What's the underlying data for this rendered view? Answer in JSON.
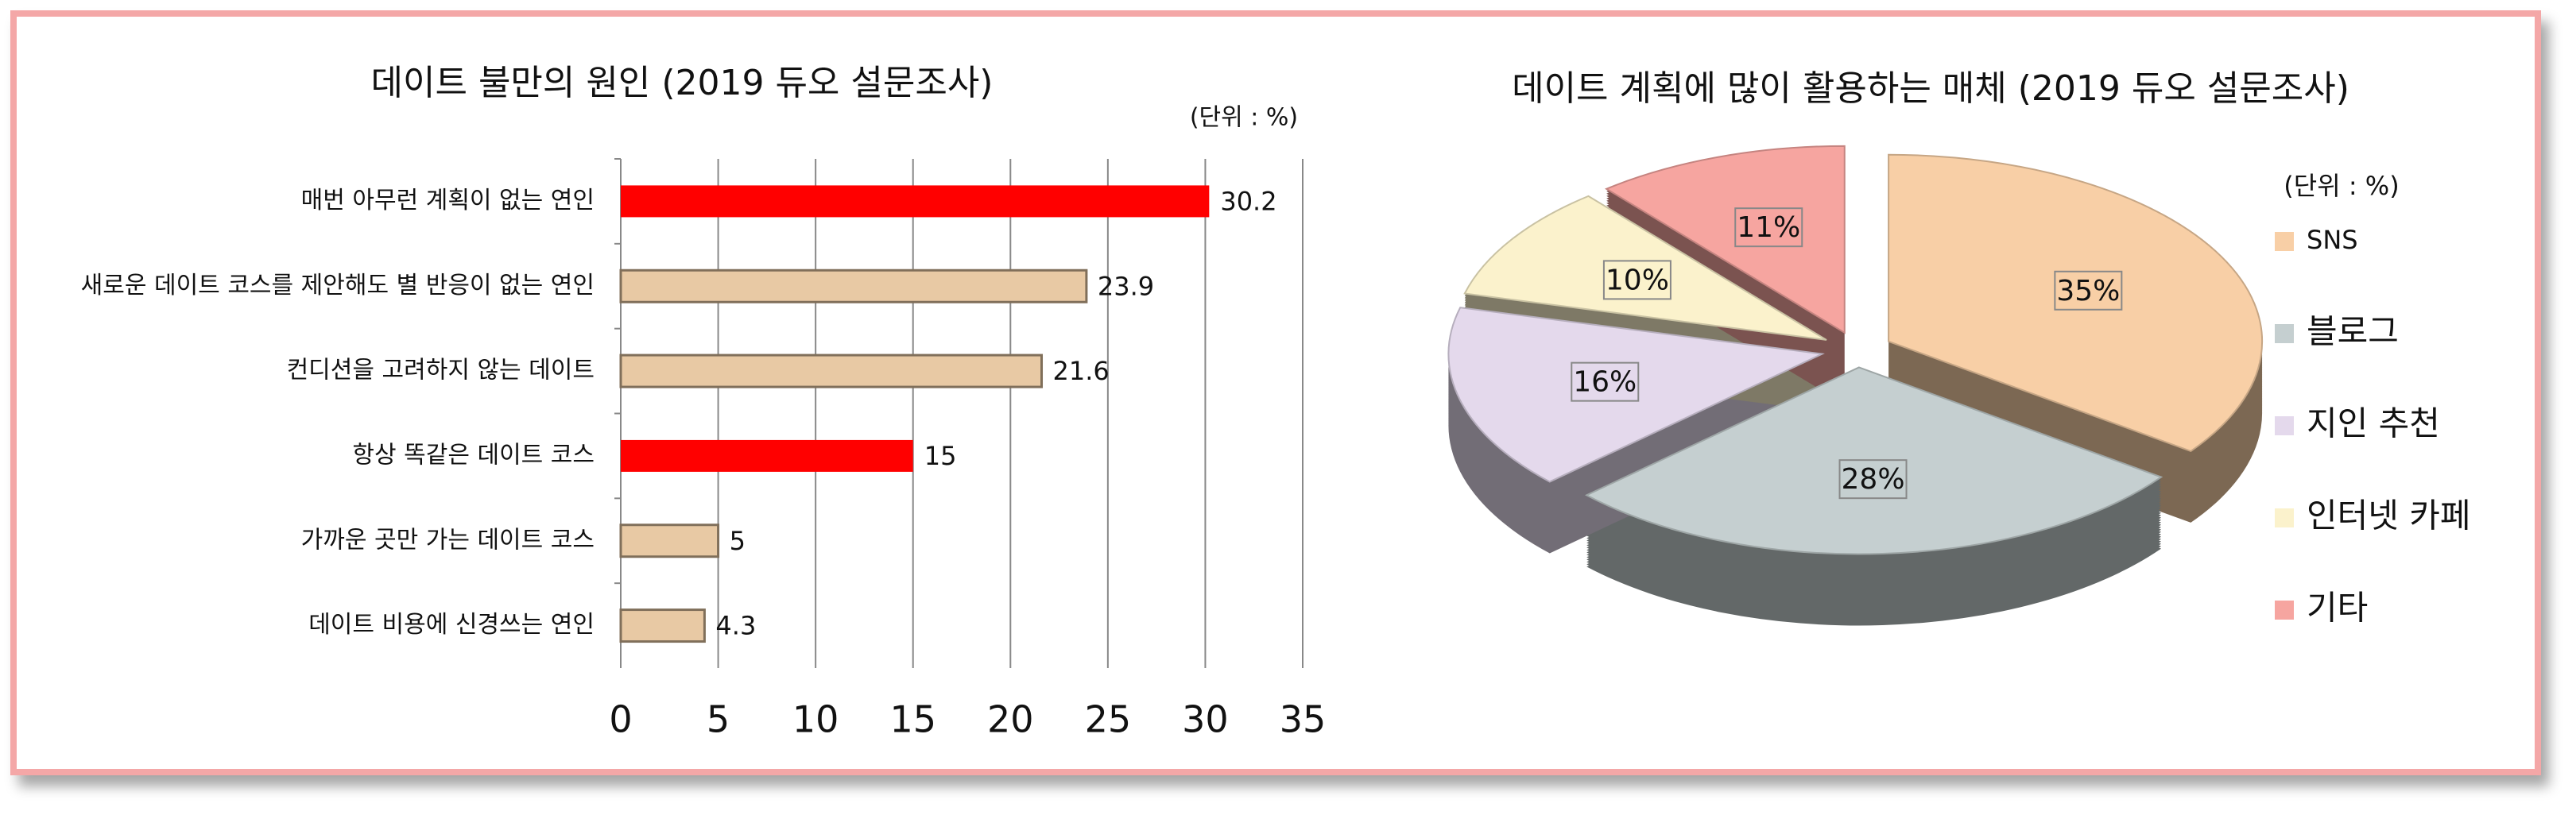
{
  "chart_data": [
    {
      "type": "hbar",
      "title": "데이트 불만의 원인 (2019 듀오 설문조사)",
      "unit": "(단위 : %)",
      "categories": [
        "매번 아무런 계획이 없는 연인",
        "새로운 데이트 코스를 제안해도 별 반응이 없는 연인",
        "컨디션을 고려하지 않는 데이트",
        "항상 똑같은 데이트 코스",
        "가까운 곳만 가는 데이트 코스",
        "데이트 비용에 신경쓰는 연인"
      ],
      "values": [
        30.2,
        23.9,
        21.6,
        15,
        5,
        4.3
      ],
      "colors": [
        "#ff0000",
        "#e8c9a4",
        "#e8c9a4",
        "#ff0000",
        "#e8c9a4",
        "#e8c9a4"
      ],
      "xlim": [
        0,
        35
      ],
      "xticks": [
        0,
        5,
        10,
        15,
        20,
        25,
        30,
        35
      ],
      "grid": true
    },
    {
      "type": "pie",
      "title": "데이트 계획에 많이 활용하는 매체 (2019 듀오 설문조사)",
      "unit": "(단위 : %)",
      "categories": [
        "SNS",
        "블로그",
        "지인 추천",
        "인터넷 카페",
        "기타"
      ],
      "values": [
        35,
        28,
        16,
        10,
        11
      ],
      "value_labels": [
        "35%",
        "28%",
        "16%",
        "10%",
        "11%"
      ],
      "colors": [
        "#f8cfa6",
        "#c5cfd0",
        "#e4d9ec",
        "#fbf2cc",
        "#f6a5a0"
      ],
      "legend": "right"
    }
  ]
}
